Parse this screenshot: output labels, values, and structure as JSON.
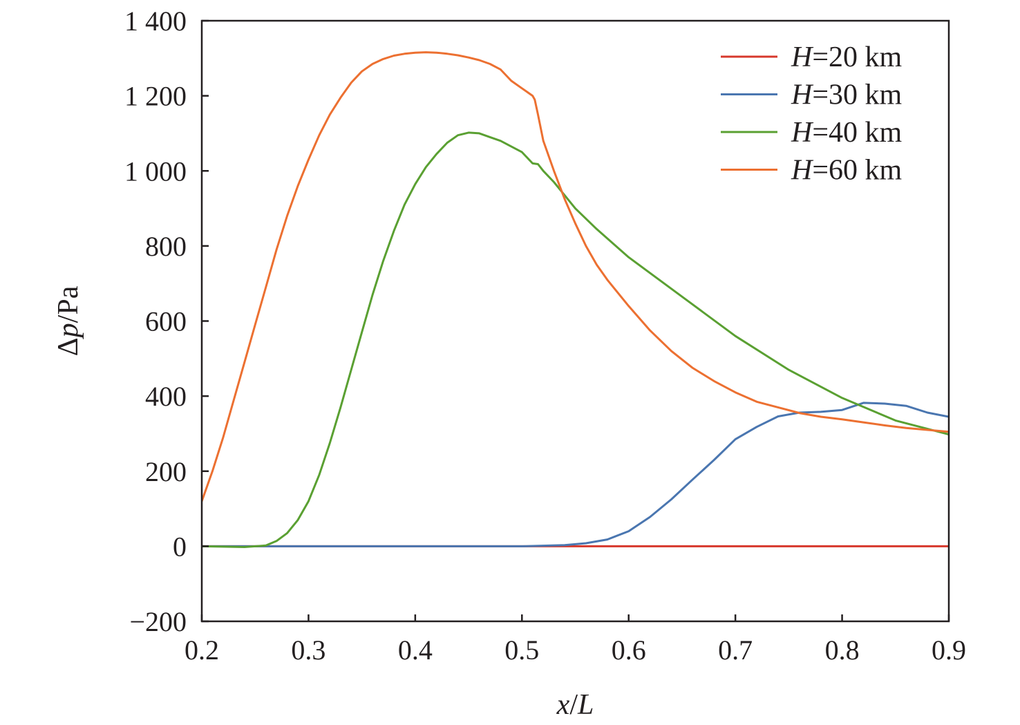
{
  "chart_data": {
    "type": "line",
    "xlabel": {
      "var": "x",
      "sep": "/",
      "unit": "L"
    },
    "ylabel": {
      "pre": "Δ",
      "var": "p",
      "sep": "/",
      "unit": "Pa"
    },
    "xlim": [
      0.2,
      0.9
    ],
    "ylim": [
      -200,
      1400
    ],
    "xticks": [
      0.2,
      0.3,
      0.4,
      0.5,
      0.6,
      0.7,
      0.8,
      0.9
    ],
    "xtick_labels": [
      "0.2",
      "0.3",
      "0.4",
      "0.5",
      "0.6",
      "0.7",
      "0.8",
      "0.9"
    ],
    "yticks": [
      -200,
      0,
      200,
      400,
      600,
      800,
      1000,
      1200,
      1400
    ],
    "ytick_labels": [
      "−200",
      "0",
      "200",
      "400",
      "600",
      "800",
      "1 000",
      "1 200",
      "1 400"
    ],
    "grid": false,
    "legend_position": "top-right",
    "series": [
      {
        "name": "H=20 km",
        "name_var": "H",
        "name_rest": "=20 km",
        "color": "#d7382c",
        "x": [
          0.2,
          0.9
        ],
        "y": [
          0,
          0
        ]
      },
      {
        "name": "H=30 km",
        "name_var": "H",
        "name_rest": "=30 km",
        "color": "#4a76b0",
        "x": [
          0.2,
          0.5,
          0.54,
          0.56,
          0.58,
          0.6,
          0.62,
          0.64,
          0.66,
          0.68,
          0.7,
          0.72,
          0.74,
          0.76,
          0.78,
          0.8,
          0.82,
          0.84,
          0.86,
          0.88,
          0.9
        ],
        "y": [
          0,
          0,
          3,
          8,
          18,
          40,
          78,
          125,
          178,
          230,
          285,
          318,
          346,
          356,
          358,
          363,
          382,
          380,
          374,
          356,
          345
        ]
      },
      {
        "name": "H=40 km",
        "name_var": "H",
        "name_rest": "=40 km",
        "color": "#5aa032",
        "x": [
          0.2,
          0.24,
          0.26,
          0.27,
          0.28,
          0.29,
          0.3,
          0.31,
          0.32,
          0.33,
          0.34,
          0.35,
          0.36,
          0.37,
          0.38,
          0.39,
          0.4,
          0.41,
          0.42,
          0.43,
          0.44,
          0.45,
          0.46,
          0.47,
          0.48,
          0.49,
          0.5,
          0.51,
          0.515,
          0.52,
          0.53,
          0.54,
          0.55,
          0.57,
          0.6,
          0.65,
          0.7,
          0.75,
          0.8,
          0.85,
          0.9
        ],
        "y": [
          0,
          -2,
          2,
          14,
          35,
          70,
          120,
          190,
          275,
          370,
          470,
          570,
          670,
          760,
          840,
          910,
          965,
          1010,
          1045,
          1075,
          1095,
          1102,
          1100,
          1090,
          1080,
          1065,
          1050,
          1020,
          1018,
          1000,
          970,
          935,
          900,
          845,
          770,
          665,
          560,
          470,
          395,
          335,
          298
        ]
      },
      {
        "name": "H=60 km",
        "name_var": "H",
        "name_rest": "=60 km",
        "color": "#ec7031",
        "x": [
          0.2,
          0.21,
          0.22,
          0.23,
          0.24,
          0.25,
          0.26,
          0.27,
          0.28,
          0.29,
          0.3,
          0.31,
          0.32,
          0.33,
          0.34,
          0.35,
          0.36,
          0.37,
          0.38,
          0.39,
          0.4,
          0.41,
          0.42,
          0.43,
          0.44,
          0.45,
          0.46,
          0.47,
          0.48,
          0.49,
          0.5,
          0.51,
          0.512,
          0.515,
          0.52,
          0.53,
          0.54,
          0.55,
          0.56,
          0.57,
          0.58,
          0.6,
          0.62,
          0.64,
          0.66,
          0.68,
          0.7,
          0.72,
          0.74,
          0.76,
          0.78,
          0.8,
          0.82,
          0.84,
          0.86,
          0.88,
          0.9
        ],
        "y": [
          120,
          200,
          290,
          390,
          490,
          590,
          690,
          790,
          880,
          960,
          1030,
          1095,
          1150,
          1195,
          1235,
          1265,
          1285,
          1298,
          1307,
          1312,
          1315,
          1316,
          1315,
          1312,
          1308,
          1302,
          1295,
          1285,
          1270,
          1240,
          1220,
          1200,
          1190,
          1150,
          1080,
          1000,
          925,
          860,
          800,
          750,
          710,
          640,
          575,
          520,
          475,
          440,
          410,
          385,
          370,
          355,
          345,
          338,
          330,
          322,
          315,
          310,
          305
        ]
      }
    ]
  }
}
